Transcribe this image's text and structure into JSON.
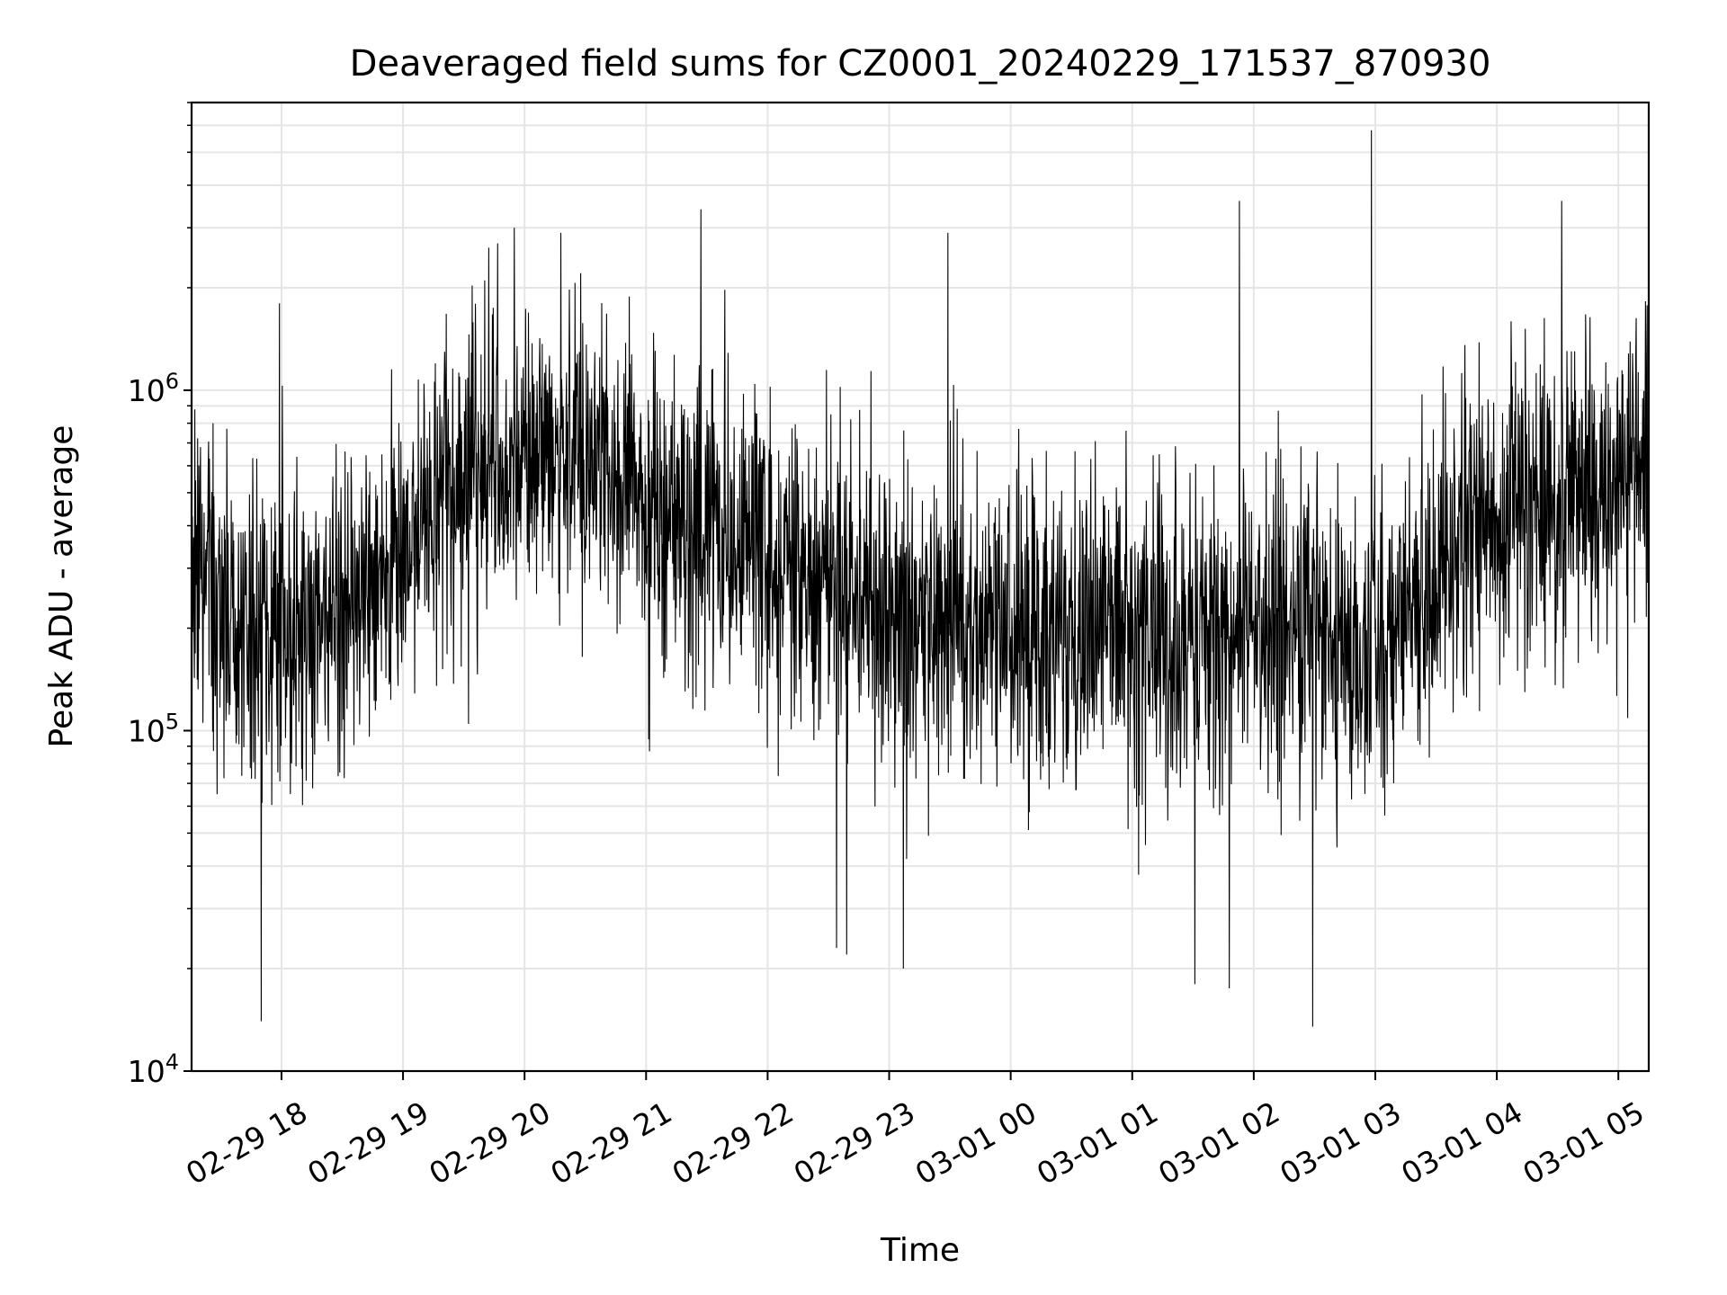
{
  "chart_data": {
    "type": "line",
    "title": "Deaveraged field sums for CZ0001_20240229_171537_870930",
    "xlabel": "Time",
    "ylabel": "Peak ADU - average",
    "yscale": "log",
    "ylim": [
      10000,
      7000000
    ],
    "xlim": [
      "2024-02-29 17:15:37",
      "2024-03-01 05:15:00"
    ],
    "grid": true,
    "x_ticks": [
      {
        "t": "2024-02-29 18:00",
        "label": "02-29 18"
      },
      {
        "t": "2024-02-29 19:00",
        "label": "02-29 19"
      },
      {
        "t": "2024-02-29 20:00",
        "label": "02-29 20"
      },
      {
        "t": "2024-02-29 21:00",
        "label": "02-29 21"
      },
      {
        "t": "2024-02-29 22:00",
        "label": "02-29 22"
      },
      {
        "t": "2024-02-29 23:00",
        "label": "02-29 23"
      },
      {
        "t": "2024-03-01 00:00",
        "label": "03-01 00"
      },
      {
        "t": "2024-03-01 01:00",
        "label": "03-01 01"
      },
      {
        "t": "2024-03-01 02:00",
        "label": "03-01 02"
      },
      {
        "t": "2024-03-01 03:00",
        "label": "03-01 03"
      },
      {
        "t": "2024-03-01 04:00",
        "label": "03-01 04"
      },
      {
        "t": "2024-03-01 05:00",
        "label": "03-01 05"
      }
    ],
    "y_ticks": [
      {
        "value": 10000,
        "base": "10",
        "exp": "4"
      },
      {
        "value": 100000,
        "base": "10",
        "exp": "5"
      },
      {
        "value": 1000000,
        "base": "10",
        "exp": "6"
      }
    ],
    "series_color": "#000000",
    "grid_color": "#e5e5e5",
    "trend": [
      {
        "t": "2024-02-29 17:15",
        "median": 300000
      },
      {
        "t": "2024-02-29 17:40",
        "median": 200000
      },
      {
        "t": "2024-02-29 18:10",
        "median": 200000
      },
      {
        "t": "2024-02-29 18:40",
        "median": 260000
      },
      {
        "t": "2024-02-29 19:10",
        "median": 400000
      },
      {
        "t": "2024-02-29 19:40",
        "median": 600000
      },
      {
        "t": "2024-02-29 20:10",
        "median": 700000
      },
      {
        "t": "2024-02-29 20:40",
        "median": 550000
      },
      {
        "t": "2024-02-29 21:15",
        "median": 450000
      },
      {
        "t": "2024-02-29 21:45",
        "median": 350000
      },
      {
        "t": "2024-02-29 22:30",
        "median": 260000
      },
      {
        "t": "2024-02-29 23:00",
        "median": 220000
      },
      {
        "t": "2024-03-01 00:00",
        "median": 200000
      },
      {
        "t": "2024-03-01 01:00",
        "median": 200000
      },
      {
        "t": "2024-03-01 02:00",
        "median": 190000
      },
      {
        "t": "2024-03-01 02:30",
        "median": 200000
      },
      {
        "t": "2024-03-01 03:00",
        "median": 170000
      },
      {
        "t": "2024-03-01 03:30",
        "median": 300000
      },
      {
        "t": "2024-03-01 04:00",
        "median": 450000
      },
      {
        "t": "2024-03-01 04:30",
        "median": 500000
      },
      {
        "t": "2024-03-01 05:00",
        "median": 550000
      },
      {
        "t": "2024-03-01 05:15",
        "median": 650000
      }
    ],
    "spikes": [
      {
        "t": "2024-02-29 17:50",
        "value": 14000
      },
      {
        "t": "2024-02-29 17:59",
        "value": 1800000
      },
      {
        "t": "2024-02-29 19:55",
        "value": 3000000
      },
      {
        "t": "2024-02-29 20:18",
        "value": 2900000
      },
      {
        "t": "2024-02-29 21:27",
        "value": 3400000
      },
      {
        "t": "2024-02-29 22:34",
        "value": 23000
      },
      {
        "t": "2024-02-29 22:39",
        "value": 22000
      },
      {
        "t": "2024-02-29 23:07",
        "value": 20000
      },
      {
        "t": "2024-02-29 23:29",
        "value": 2900000
      },
      {
        "t": "2024-03-01 01:31",
        "value": 18000
      },
      {
        "t": "2024-03-01 01:48",
        "value": 17500
      },
      {
        "t": "2024-03-01 01:53",
        "value": 3600000
      },
      {
        "t": "2024-03-01 02:29",
        "value": 13500
      },
      {
        "t": "2024-03-01 02:58",
        "value": 5800000
      },
      {
        "t": "2024-03-01 04:32",
        "value": 3600000
      }
    ]
  }
}
